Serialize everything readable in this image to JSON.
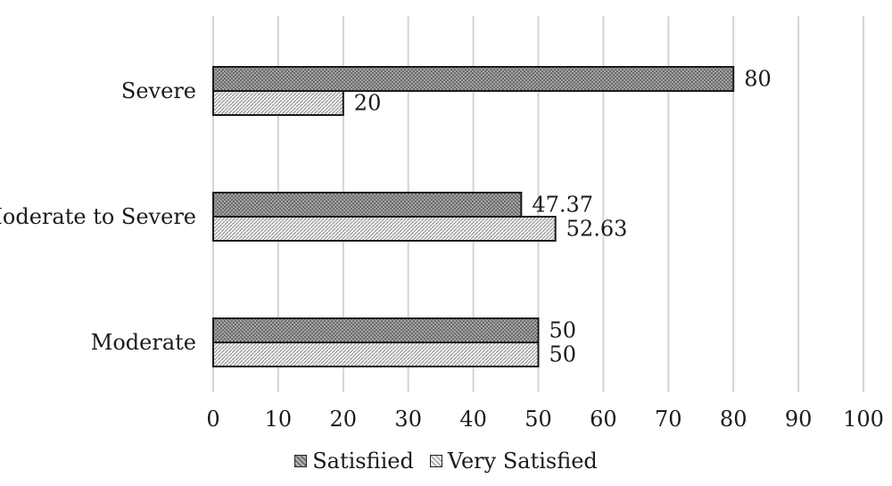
{
  "chart_data": {
    "type": "bar",
    "orientation": "horizontal",
    "categories": [
      "Severe",
      "Moderate to Severe",
      "Moderate"
    ],
    "series": [
      {
        "name": "Satisfiied",
        "values": [
          80,
          47.37,
          50
        ]
      },
      {
        "name": "Very Satisfied",
        "values": [
          20,
          52.63,
          50
        ]
      }
    ],
    "data_labels": [
      [
        "80",
        "47.37",
        "50"
      ],
      [
        "20",
        "52.63",
        "50"
      ]
    ],
    "xlim": [
      0,
      100
    ],
    "xticks": [
      "0",
      "10",
      "20",
      "30",
      "40",
      "50",
      "60",
      "70",
      "80",
      "90",
      "100"
    ],
    "grid": true,
    "legend_position": "bottom",
    "title": "",
    "xlabel": "",
    "ylabel": ""
  }
}
